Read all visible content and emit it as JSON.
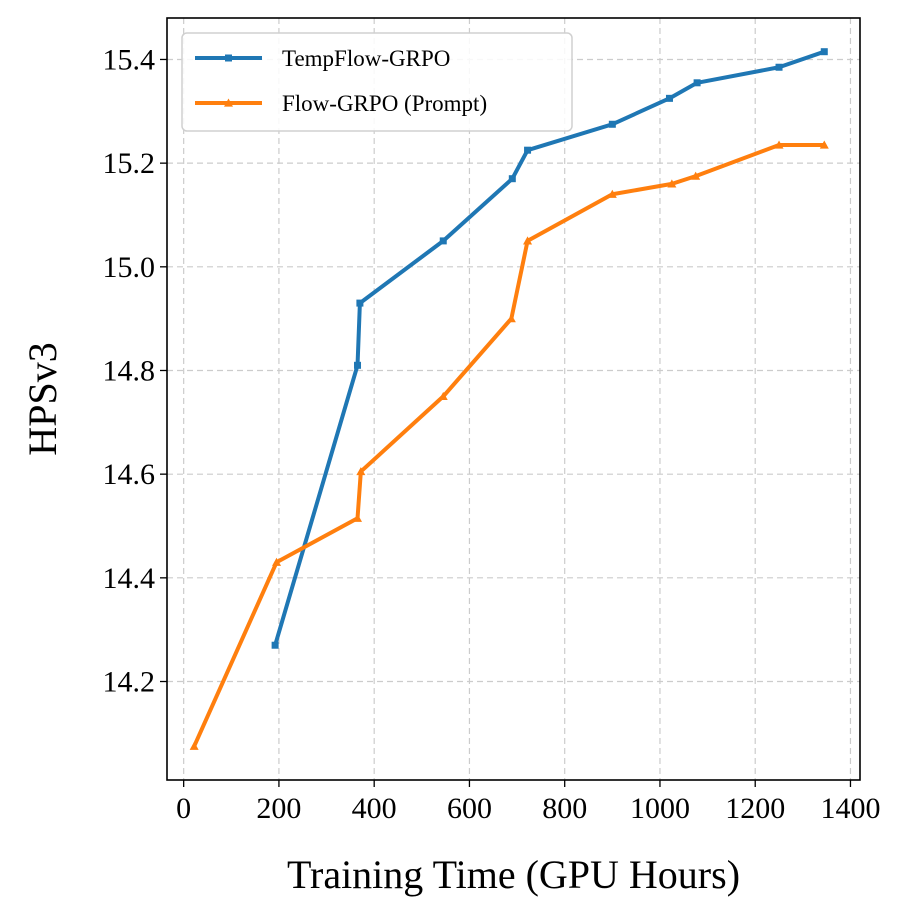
{
  "chart_data": {
    "type": "line",
    "title": "",
    "xlabel": "Training Time (GPU Hours)",
    "ylabel": "HPSv3",
    "xlim": [
      -35,
      1420
    ],
    "ylim": [
      14.01,
      15.48
    ],
    "xticks": [
      0,
      200,
      400,
      600,
      800,
      1000,
      1200,
      1400
    ],
    "xtick_labels": [
      "0",
      "200",
      "400",
      "600",
      "800",
      "1000",
      "1200",
      "1400"
    ],
    "yticks": [
      14.2,
      14.4,
      14.6,
      14.8,
      15.0,
      15.2,
      15.4
    ],
    "ytick_labels": [
      "14.2",
      "14.4",
      "14.6",
      "14.8",
      "15.0",
      "15.2",
      "15.4"
    ],
    "grid": true,
    "legend_position": "top-left",
    "series": [
      {
        "name": "TempFlow-GRPO",
        "color": "#1f77b4",
        "marker": "square",
        "x": [
          192,
          365,
          370,
          545,
          690,
          722,
          900,
          1020,
          1078,
          1250,
          1345
        ],
        "y": [
          14.27,
          14.81,
          14.93,
          15.05,
          15.17,
          15.225,
          15.275,
          15.325,
          15.355,
          15.385,
          15.415
        ]
      },
      {
        "name": "Flow-GRPO (Prompt)",
        "color": "#ff7f0e",
        "marker": "triangle",
        "x": [
          22,
          195,
          365,
          372,
          545,
          688,
          722,
          900,
          1025,
          1075,
          1250,
          1345
        ],
        "y": [
          14.075,
          14.43,
          14.515,
          14.605,
          14.75,
          14.9,
          15.05,
          15.14,
          15.16,
          15.175,
          15.235,
          15.235
        ]
      }
    ]
  }
}
